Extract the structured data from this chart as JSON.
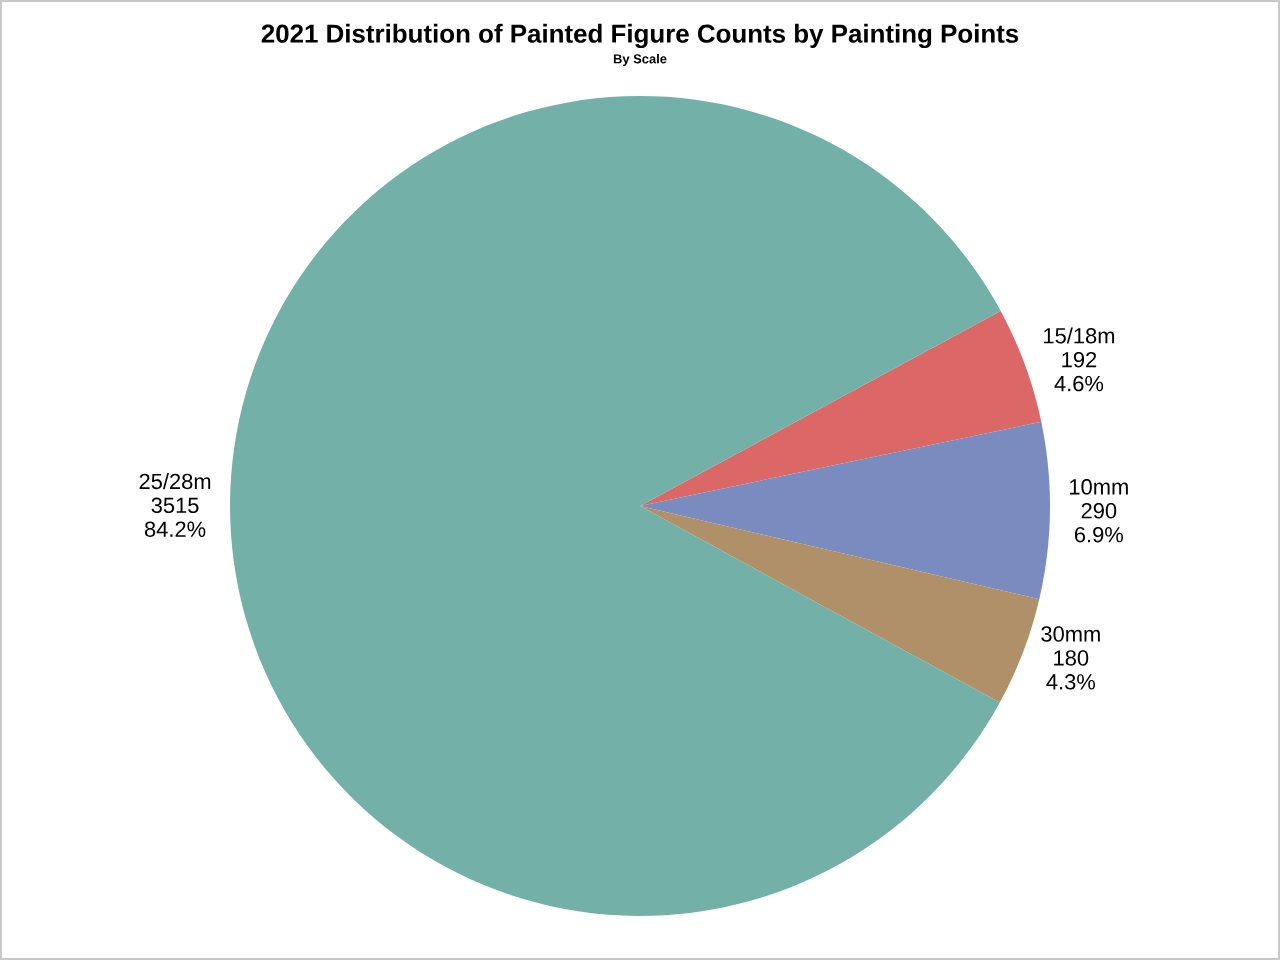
{
  "chart_data": {
    "type": "pie",
    "title": "2021 Distribution of Painted Figure Counts by Painting Points",
    "subtitle": "By Scale",
    "categories": [
      "15/18m",
      "10mm",
      "30mm",
      "25/28m"
    ],
    "values": [
      192,
      290,
      180,
      3515
    ],
    "colors": [
      "#db6767",
      "#7a8bbf",
      "#b09068",
      "#72b0a8"
    ],
    "value_labels": [
      "192",
      "290",
      "180",
      "3515"
    ],
    "annotations": [
      "4.6%",
      "6.9%",
      "4.3%",
      "84.2%"
    ]
  }
}
